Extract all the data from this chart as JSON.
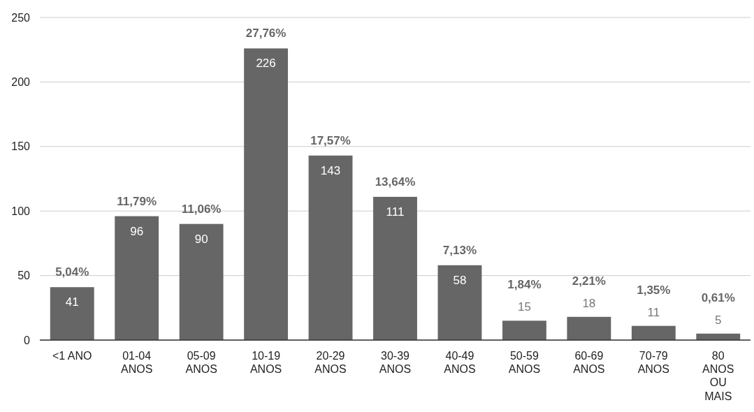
{
  "chart_data": {
    "type": "bar",
    "categories": [
      "<1 ANO",
      "01-04 ANOS",
      "05-09 ANOS",
      "10-19 ANOS",
      "20-29 ANOS",
      "30-39 ANOS",
      "40-49 ANOS",
      "50-59 ANOS",
      "60-69 ANOS",
      "70-79 ANOS",
      "80 ANOS OU MAIS"
    ],
    "values": [
      41,
      96,
      90,
      226,
      143,
      111,
      58,
      15,
      18,
      11,
      5
    ],
    "color": "#666666",
    "ylim": [
      0,
      250
    ],
    "yticks": [
      0,
      50,
      100,
      150,
      200,
      250
    ],
    "grid": "y",
    "data_labels": true,
    "annotations": [
      {
        "text": "5,04%",
        "x": "<1 ANO",
        "y": 41
      },
      {
        "text": "11,79%",
        "x": "01-04 ANOS",
        "y": 96
      },
      {
        "text": "11,06%",
        "x": "05-09 ANOS",
        "y": 90
      },
      {
        "text": "27,76%",
        "x": "10-19 ANOS",
        "y": 226
      },
      {
        "text": "17,57%",
        "x": "20-29 ANOS",
        "y": 143
      },
      {
        "text": "13,64%",
        "x": "30-39 ANOS",
        "y": 111
      },
      {
        "text": "7,13%",
        "x": "40-49 ANOS",
        "y": 58
      },
      {
        "text": "1,84%",
        "x": "50-59 ANOS",
        "y": 15
      },
      {
        "text": "2,21%",
        "x": "60-69 ANOS",
        "y": 18
      },
      {
        "text": "1,35%",
        "x": "70-79 ANOS",
        "y": 11
      },
      {
        "text": "0,61%",
        "x": "80 ANOS OU MAIS",
        "y": 5
      }
    ]
  }
}
